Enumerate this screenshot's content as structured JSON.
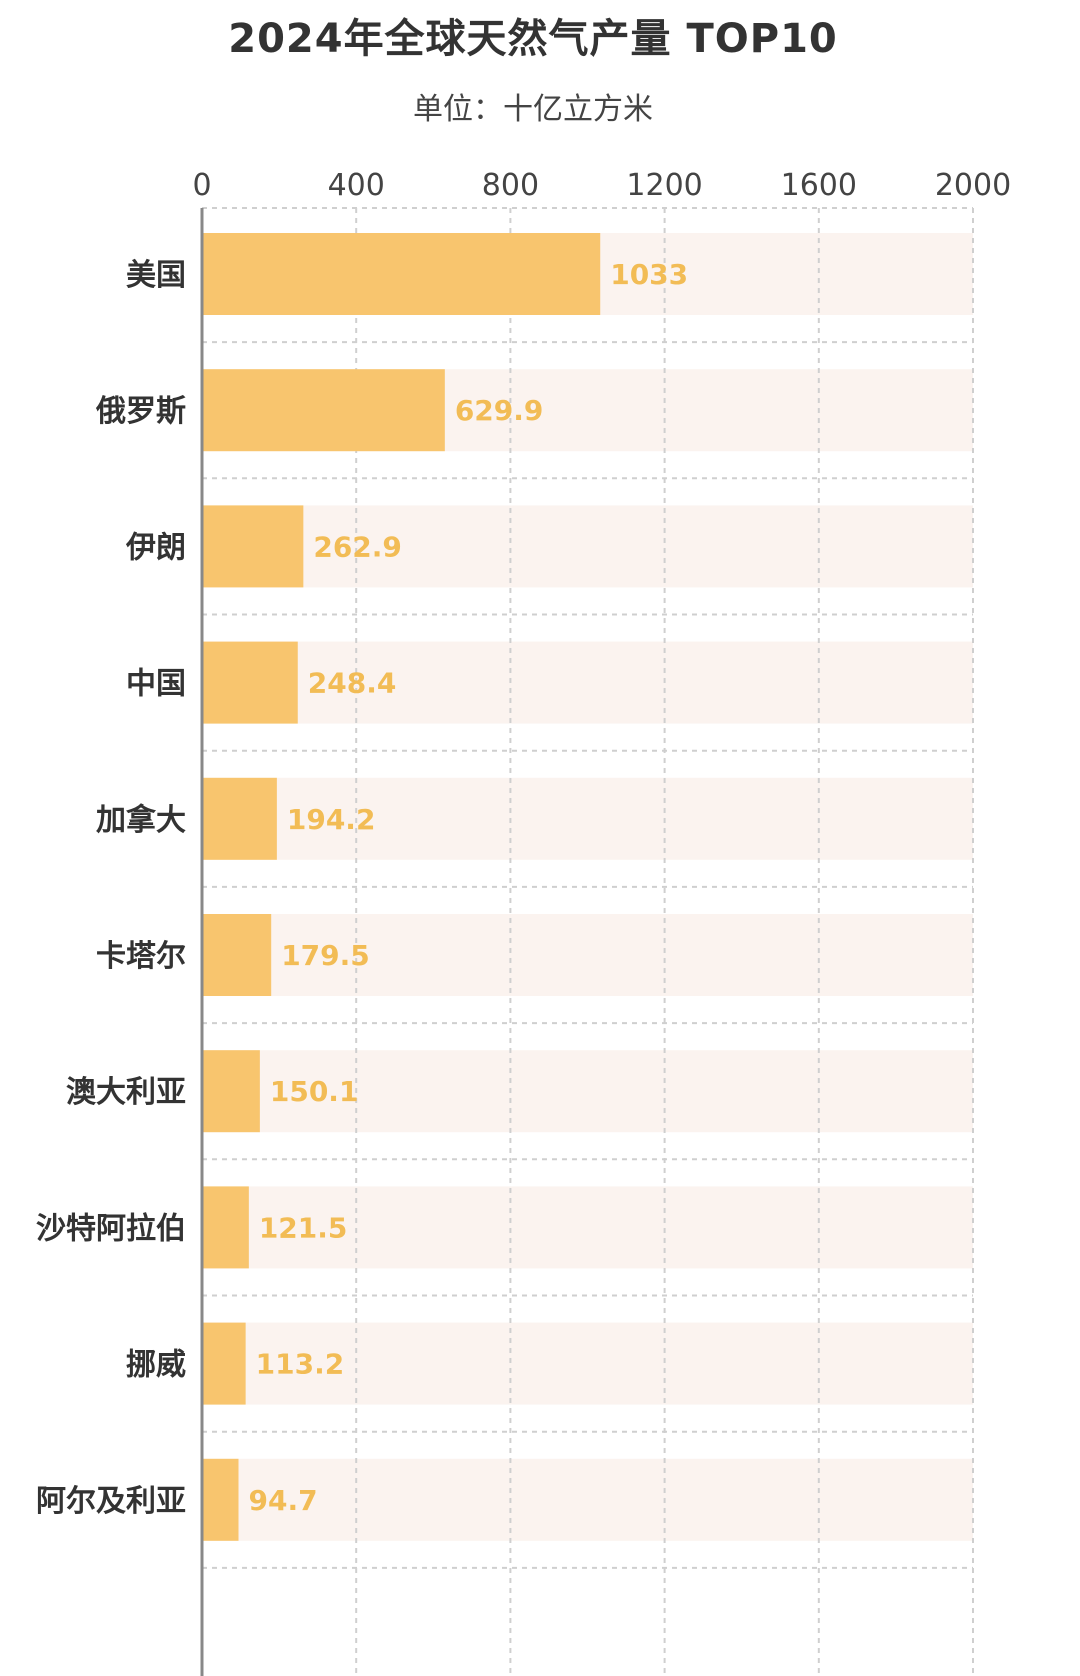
{
  "title": "2024年全球天然气产量 TOP10",
  "subtitle": "单位：十亿立方米",
  "colors": {
    "bar": "#F8C56E",
    "track": "#FBF3EF",
    "value_label": "#F2BC55",
    "axis": "#888888",
    "grid": "#CFCFCF"
  },
  "chart_data": {
    "type": "bar",
    "orientation": "horizontal",
    "title": "2024年全球天然气产量 TOP10",
    "subtitle": "单位：十亿立方米",
    "categories": [
      "美国",
      "俄罗斯",
      "伊朗",
      "中国",
      "加拿大",
      "卡塔尔",
      "澳大利亚",
      "沙特阿拉伯",
      "挪威",
      "阿尔及利亚"
    ],
    "values": [
      1033,
      629.9,
      262.9,
      248.4,
      194.2,
      179.5,
      150.1,
      121.5,
      113.2,
      94.7
    ],
    "value_labels": [
      "1033",
      "629.9",
      "262.9",
      "248.4",
      "194.2",
      "179.5",
      "150.1",
      "121.5",
      "113.2",
      "94.7"
    ],
    "xlim": [
      0,
      2000
    ],
    "xticks": [
      0,
      400,
      800,
      1200,
      1600,
      2000
    ],
    "xtick_labels": [
      "0",
      "400",
      "800",
      "1200",
      "1600",
      "2000"
    ],
    "x_axis_position": "top",
    "grid": true,
    "legend": false
  }
}
